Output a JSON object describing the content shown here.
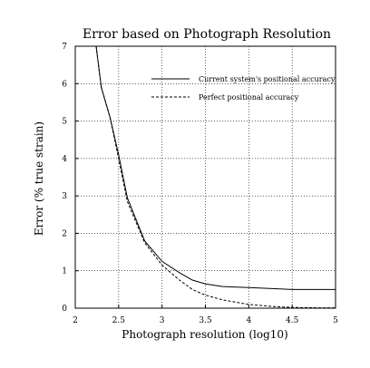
{
  "chart_data": {
    "type": "line",
    "title": "Error based on Photograph Resolution",
    "xlabel": "Photograph resolution (log10)",
    "ylabel": "Error (% true strain)",
    "xlim": [
      2,
      5
    ],
    "ylim": [
      0,
      7
    ],
    "xticks": [
      2,
      2.5,
      3,
      3.5,
      4,
      4.5,
      5
    ],
    "xtick_labels": [
      "2",
      "2.5",
      "3",
      "3.5",
      "4",
      "4.5",
      "5"
    ],
    "yticks": [
      0,
      1,
      2,
      3,
      4,
      5,
      6,
      7
    ],
    "ytick_labels": [
      "0",
      "1",
      "2",
      "3",
      "4",
      "5",
      "6",
      "7"
    ],
    "grid": true,
    "legend_position": "top-right",
    "series": [
      {
        "name": "Current system's positional accuracy",
        "style": "solid",
        "color": "#000000",
        "x": [
          2.24,
          2.3,
          2.4,
          2.5,
          2.6,
          2.8,
          3.0,
          3.2,
          3.35,
          3.5,
          3.7,
          4.0,
          4.3,
          4.5,
          4.8,
          5.0
        ],
        "y": [
          7.0,
          5.9,
          5.1,
          4.1,
          2.95,
          1.8,
          1.25,
          0.95,
          0.75,
          0.65,
          0.58,
          0.55,
          0.52,
          0.5,
          0.5,
          0.5
        ]
      },
      {
        "name": "Perfect positional accuracy",
        "style": "dashed",
        "color": "#000000",
        "x": [
          2.24,
          2.3,
          2.4,
          2.5,
          2.6,
          2.8,
          3.0,
          3.2,
          3.35,
          3.5,
          3.7,
          4.0,
          4.3,
          4.5,
          4.8,
          5.0
        ],
        "y": [
          7.0,
          5.9,
          5.1,
          4.0,
          2.85,
          1.75,
          1.15,
          0.75,
          0.5,
          0.35,
          0.22,
          0.1,
          0.04,
          0.02,
          0.01,
          0.01
        ]
      }
    ]
  }
}
